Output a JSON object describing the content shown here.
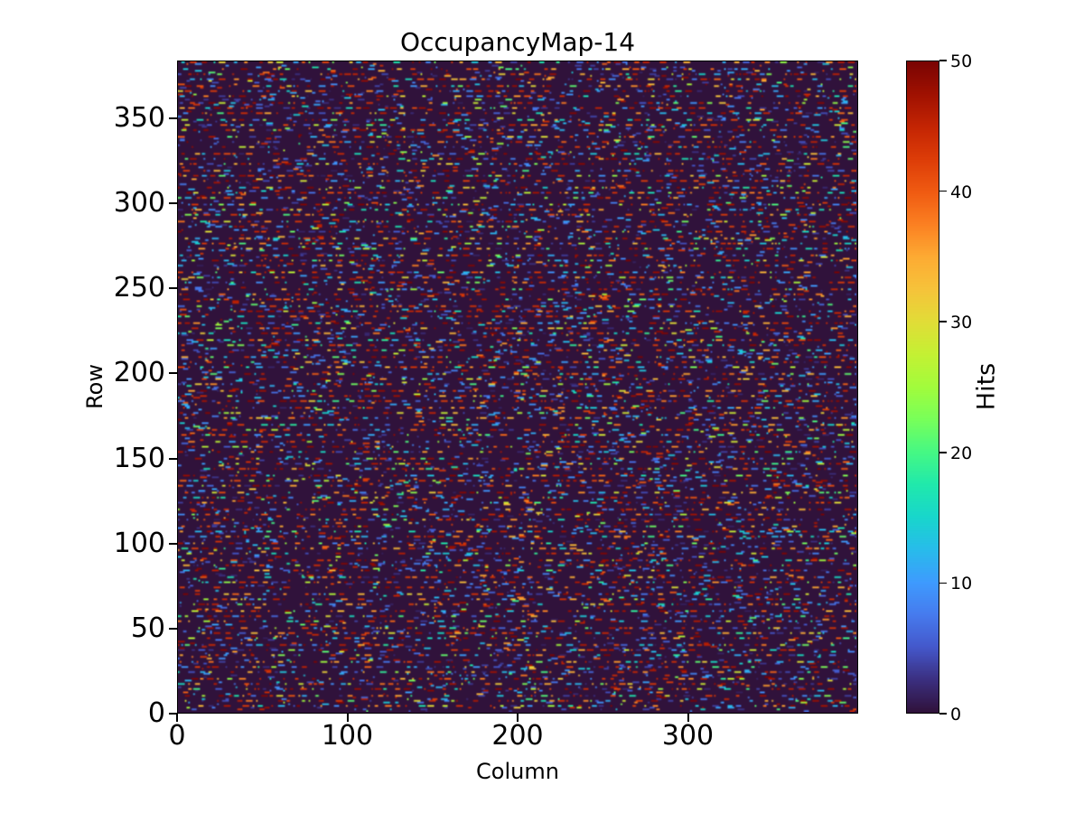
{
  "chart_data": {
    "type": "heatmap",
    "title": "OccupancyMap-14",
    "xlabel": "Column",
    "ylabel": "Row",
    "x_range": [
      0,
      400
    ],
    "y_range": [
      0,
      384
    ],
    "x_ticks": [
      0,
      100,
      200,
      300
    ],
    "y_ticks": [
      0,
      50,
      100,
      150,
      200,
      250,
      300,
      350
    ],
    "grid": {
      "cols": 400,
      "rows": 384
    },
    "colorbar": {
      "label": "Hits",
      "ticks": [
        0,
        10,
        20,
        30,
        40,
        50
      ],
      "vmin": 0,
      "vmax": 50,
      "colormap": "turbo"
    },
    "background_hex": "#30123b",
    "palette": [
      "#30123b",
      "#3b2f80",
      "#4458cb",
      "#467bee",
      "#3e9bfe",
      "#28bceb",
      "#18d6cc",
      "#20e9ac",
      "#46f884",
      "#78ff5a",
      "#a2fc3c",
      "#c4f133",
      "#e1dd37",
      "#f6c33a",
      "#fdab33",
      "#fb8022",
      "#f05b12",
      "#dd3d08",
      "#c42503",
      "#a01101",
      "#7a0403"
    ],
    "pattern": {
      "description": "Sparse random occupancy speckle: dark zero-valued background with short horizontal runs of hits (1-50), red-biased colors, dense dash rows recurring roughly every third row",
      "seed": 14,
      "dense_row_fill": 0.3,
      "sparse_row_fill": 0.05,
      "max_run": 4
    }
  }
}
